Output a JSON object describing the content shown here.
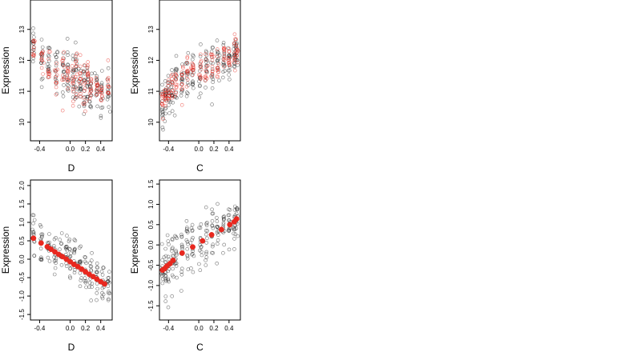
{
  "chart_data": [
    {
      "type": "scatter",
      "xlabel": "D",
      "ylabel": "Expression",
      "xlim": [
        -0.52,
        0.55
      ],
      "ylim": [
        9.4,
        13.95
      ],
      "xticks": [
        -0.4,
        0.0,
        0.2,
        0.4
      ],
      "xticklabels": [
        "-0.4",
        "0.0",
        "0.2",
        "0.4"
      ],
      "yticks": [
        10,
        11,
        12,
        13
      ],
      "yticklabels": [
        "10",
        "11",
        "12",
        "13"
      ],
      "x_groups": [
        -0.48,
        -0.37,
        -0.28,
        -0.18,
        -0.09,
        -0.03,
        0.04,
        0.08,
        0.13,
        0.18,
        0.23,
        0.27,
        0.35,
        0.41,
        0.5
      ],
      "series": [
        {
          "color": "#000000",
          "filled": false,
          "group_center": [
            12.5,
            12.0,
            11.9,
            11.7,
            11.5,
            11.6,
            11.3,
            11.5,
            11.2,
            11.1,
            11.3,
            11.0,
            11.2,
            10.9,
            11.0
          ],
          "group_spread": [
            0.7,
            0.6,
            0.6,
            0.7,
            0.8,
            0.8,
            0.8,
            0.9,
            0.9,
            0.9,
            0.8,
            0.7,
            0.6,
            0.6,
            0.6
          ]
        },
        {
          "color": "#e8281f",
          "filled": false,
          "group_center": [
            12.4,
            12.0,
            11.8,
            11.6,
            11.5,
            11.5,
            11.4,
            11.5,
            11.4,
            11.2,
            11.3,
            11.1,
            11.2,
            11.0,
            11.1
          ],
          "group_spread": [
            0.5,
            0.5,
            0.5,
            0.6,
            0.6,
            0.6,
            0.6,
            0.6,
            0.6,
            0.6,
            0.6,
            0.5,
            0.5,
            0.5,
            0.5
          ]
        }
      ],
      "fitted": []
    },
    {
      "type": "scatter",
      "xlabel": "C",
      "ylabel": "Expression",
      "xlim": [
        -0.52,
        0.55
      ],
      "ylim": [
        9.4,
        13.95
      ],
      "xticks": [
        -0.4,
        0.0,
        0.2,
        0.4
      ],
      "xticklabels": [
        "-0.4",
        "0.0",
        "0.2",
        "0.4"
      ],
      "yticks": [
        10,
        11,
        12,
        13
      ],
      "yticklabels": [
        "10",
        "11",
        "12",
        "13"
      ],
      "x_groups": [
        -0.48,
        -0.44,
        -0.4,
        -0.35,
        -0.3,
        -0.22,
        -0.15,
        -0.08,
        0.02,
        0.1,
        0.18,
        0.25,
        0.33,
        0.4,
        0.47,
        0.5
      ],
      "series": [
        {
          "color": "#000000",
          "filled": false,
          "group_center": [
            10.4,
            10.6,
            10.8,
            11.0,
            11.2,
            11.3,
            11.5,
            11.7,
            11.6,
            11.8,
            11.9,
            11.9,
            12.0,
            12.0,
            12.1,
            12.1
          ],
          "group_spread": [
            0.7,
            0.7,
            0.6,
            0.7,
            0.7,
            0.8,
            0.7,
            0.6,
            0.7,
            0.6,
            0.6,
            0.6,
            0.6,
            0.5,
            0.5,
            0.5
          ]
        },
        {
          "color": "#e8281f",
          "filled": false,
          "group_center": [
            10.6,
            10.8,
            11.0,
            11.2,
            11.3,
            11.5,
            11.6,
            11.7,
            11.7,
            11.8,
            11.9,
            12.0,
            12.1,
            12.1,
            12.2,
            12.2
          ],
          "group_spread": [
            0.5,
            0.5,
            0.5,
            0.5,
            0.5,
            0.6,
            0.5,
            0.5,
            0.5,
            0.5,
            0.5,
            0.5,
            0.5,
            0.5,
            0.5,
            0.5
          ]
        }
      ],
      "fitted": []
    },
    {
      "type": "scatter",
      "xlabel": "D",
      "ylabel": "Expression",
      "xlim": [
        -0.52,
        0.55
      ],
      "ylim": [
        -1.65,
        2.15
      ],
      "xticks": [
        -0.4,
        0.0,
        0.2,
        0.4
      ],
      "xticklabels": [
        "-0.4",
        "0.0",
        "0.2",
        "0.4"
      ],
      "yticks": [
        -1.5,
        -1.0,
        -0.5,
        0.0,
        0.5,
        1.0,
        1.5,
        2.0
      ],
      "yticklabels": [
        "-1.5",
        "-1.0",
        "-0.5",
        "0.0",
        "0.5",
        "1.0",
        "1.5",
        "2.0"
      ],
      "x_groups": [
        -0.48,
        -0.38,
        -0.28,
        -0.2,
        -0.12,
        -0.05,
        0.0,
        0.06,
        0.13,
        0.2,
        0.27,
        0.35,
        0.43,
        0.5
      ],
      "series": [
        {
          "color": "#000000",
          "filled": false,
          "group_center": [
            0.7,
            0.4,
            0.3,
            0.2,
            0.15,
            0.05,
            0.0,
            -0.1,
            -0.2,
            -0.3,
            -0.4,
            -0.5,
            -0.6,
            -0.7
          ],
          "group_spread": [
            0.6,
            0.5,
            0.5,
            0.5,
            0.5,
            0.5,
            0.6,
            0.6,
            0.6,
            0.6,
            0.5,
            0.5,
            0.4,
            0.4
          ]
        }
      ],
      "fitted": [
        {
          "color": "#e8281f",
          "filled": true,
          "x": [
            -0.48,
            -0.38,
            -0.3,
            -0.25,
            -0.2,
            -0.15,
            -0.1,
            -0.05,
            0.0,
            0.05,
            0.1,
            0.15,
            0.2,
            0.25,
            0.3,
            0.35,
            0.4,
            0.45
          ],
          "y": [
            0.57,
            0.44,
            0.34,
            0.27,
            0.2,
            0.13,
            0.07,
            0.0,
            -0.07,
            -0.14,
            -0.2,
            -0.27,
            -0.34,
            -0.41,
            -0.47,
            -0.54,
            -0.61,
            -0.67
          ]
        }
      ]
    },
    {
      "type": "scatter",
      "xlabel": "C",
      "ylabel": "Expression",
      "xlim": [
        -0.52,
        0.55
      ],
      "ylim": [
        -1.85,
        1.6
      ],
      "xticks": [
        -0.4,
        0.0,
        0.2,
        0.4
      ],
      "xticklabels": [
        "-0.4",
        "0.0",
        "0.2",
        "0.4"
      ],
      "yticks": [
        -1.5,
        -1.0,
        -0.5,
        0.0,
        0.5,
        1.0,
        1.5
      ],
      "yticklabels": [
        "-1.5",
        "-1.0",
        "-0.5",
        "0.0",
        "0.5",
        "1.0",
        "1.5"
      ],
      "x_groups": [
        -0.48,
        -0.44,
        -0.4,
        -0.35,
        -0.3,
        -0.22,
        -0.15,
        -0.08,
        0.02,
        0.1,
        0.18,
        0.25,
        0.33,
        0.4,
        0.47,
        0.5
      ],
      "series": [
        {
          "color": "#000000",
          "filled": false,
          "group_center": [
            -0.7,
            -0.6,
            -0.5,
            -0.4,
            -0.3,
            -0.2,
            -0.1,
            0.0,
            0.1,
            0.2,
            0.3,
            0.35,
            0.4,
            0.5,
            0.55,
            0.6
          ],
          "group_spread": [
            0.6,
            0.6,
            0.6,
            0.6,
            0.6,
            0.6,
            0.6,
            0.6,
            0.6,
            0.6,
            0.55,
            0.5,
            0.5,
            0.5,
            0.5,
            0.5
          ]
        }
      ],
      "fitted": [
        {
          "color": "#e8281f",
          "filled": true,
          "x": [
            -0.48,
            -0.45,
            -0.42,
            -0.38,
            -0.34,
            -0.22,
            -0.08,
            0.05,
            0.17,
            0.3,
            0.41,
            0.47,
            0.5
          ],
          "y": [
            -0.62,
            -0.58,
            -0.52,
            -0.46,
            -0.38,
            -0.2,
            -0.05,
            0.1,
            0.25,
            0.38,
            0.5,
            0.57,
            0.64
          ]
        }
      ]
    }
  ]
}
